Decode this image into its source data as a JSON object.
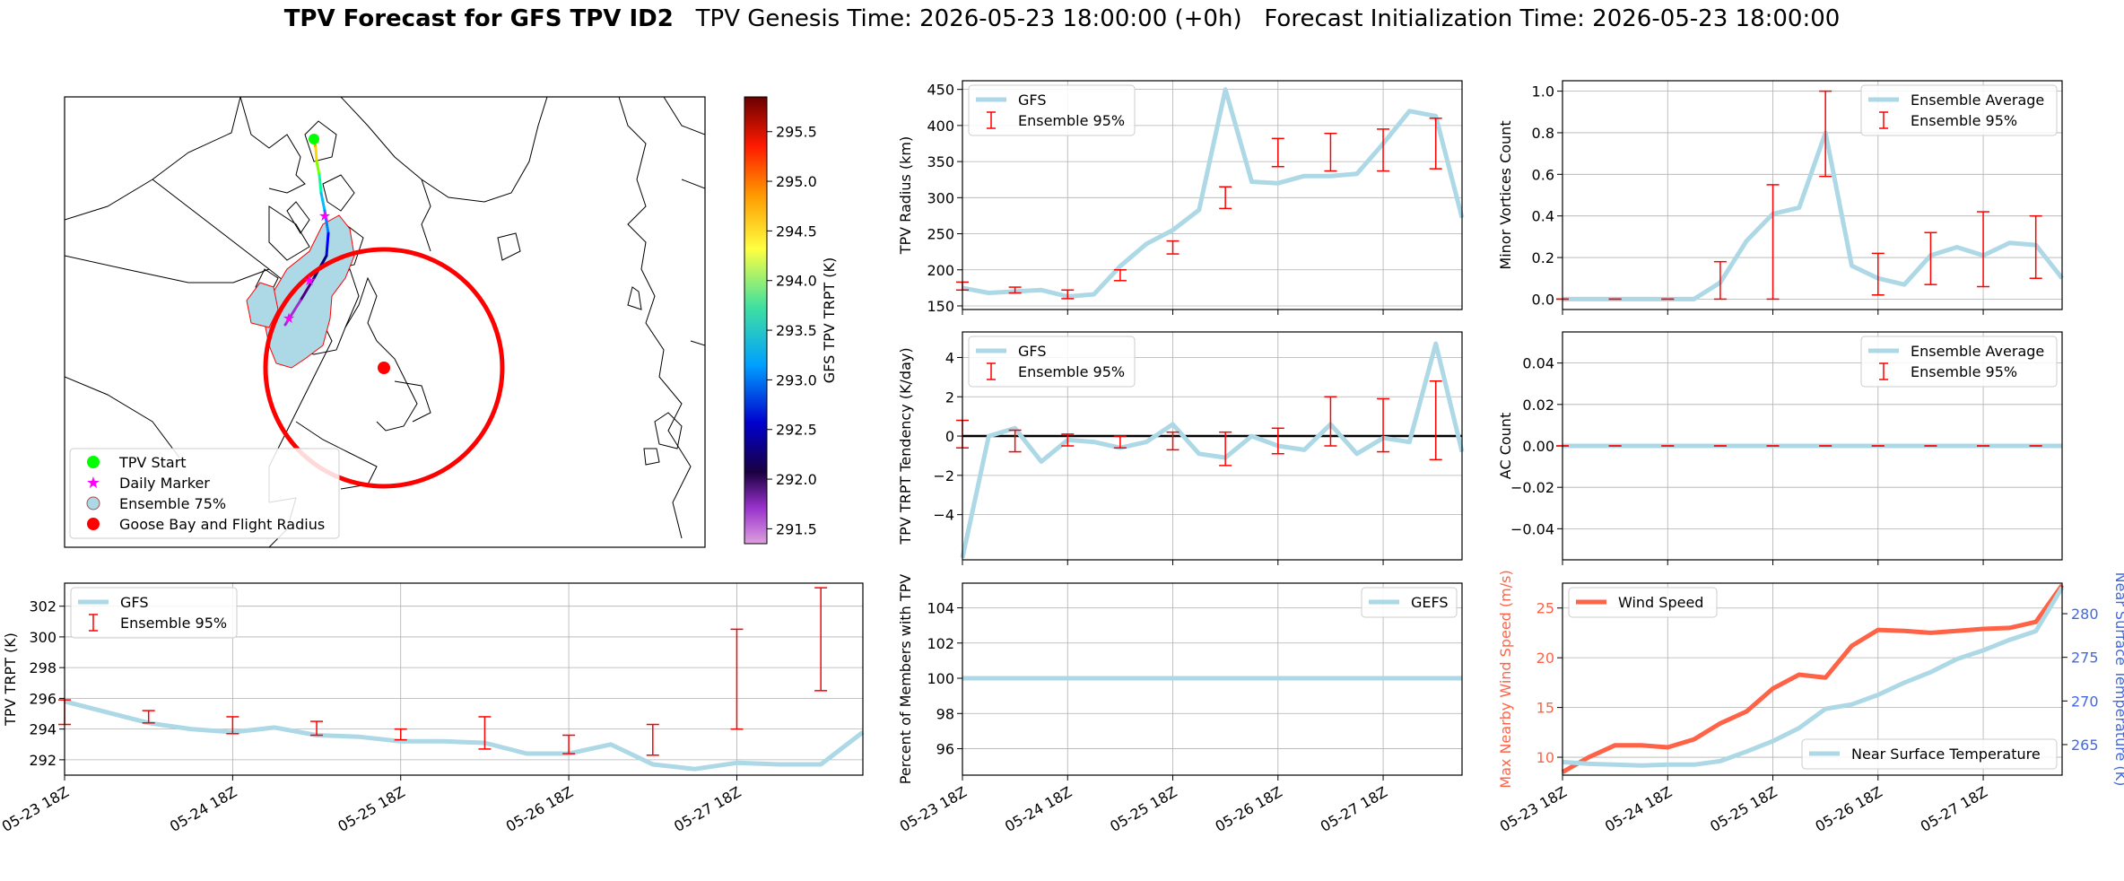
{
  "title": {
    "bold": "TPV Forecast for GFS TPV ID2",
    "genesis": "TPV Genesis Time: 2026-05-23 18:00:00 (+0h)",
    "init": "Forecast Initialization Time: 2026-05-23 18:00:00"
  },
  "colors": {
    "gfs_line": "#add8e6",
    "ensemble_bar": "#ff0000",
    "wind": "#ff6347",
    "temp_axis": "#4169e1",
    "start_marker": "#00ff00",
    "daily_marker": "#ff00ff",
    "goose_bay": "#ff0000"
  },
  "date_ticks": [
    "05-23 18Z",
    "05-24 18Z",
    "05-25 18Z",
    "05-26 18Z",
    "05-27 18Z"
  ],
  "map": {
    "legend": [
      {
        "label": "TPV Start",
        "icon": "green-circle-icon"
      },
      {
        "label": "Daily Marker",
        "icon": "magenta-star-icon"
      },
      {
        "label": "Ensemble 75%",
        "icon": "lightblue-circle-icon"
      },
      {
        "label": "Goose Bay and Flight Radius",
        "icon": "red-circle-icon"
      }
    ],
    "colorbar": {
      "label": "GFS TPV TRPT (K)",
      "ticks": [
        "295.5",
        "295.0",
        "294.5",
        "294.0",
        "293.5",
        "293.0",
        "292.5",
        "292.0",
        "291.5"
      ],
      "range": [
        291.35,
        295.85
      ]
    }
  },
  "chart_data": [
    {
      "id": "trpt",
      "type": "line",
      "title": "",
      "xlabel": "",
      "ylabel": "TPV TRPT (K)",
      "ylim": [
        291,
        303.5
      ],
      "yticks": [
        292,
        294,
        296,
        298,
        300,
        302
      ],
      "x": [
        0,
        0.25,
        0.5,
        0.75,
        1.0,
        1.25,
        1.5,
        1.75,
        2.0,
        2.25,
        2.5,
        2.75,
        3.0,
        3.25,
        3.5,
        3.75,
        4.0,
        4.25,
        4.5,
        4.75
      ],
      "series": [
        {
          "name": "GFS",
          "values": [
            295.8,
            295.1,
            294.4,
            294.0,
            293.8,
            294.1,
            293.6,
            293.5,
            293.2,
            293.2,
            293.1,
            292.4,
            292.4,
            293.0,
            291.7,
            291.4,
            291.8,
            291.7,
            291.7,
            293.8
          ]
        },
        {
          "name": "Ensemble 95%",
          "kind": "errorbar",
          "x": [
            0,
            0.5,
            1.0,
            1.5,
            2.0,
            2.5,
            3.0,
            3.5,
            4.0,
            4.5
          ],
          "low": [
            294.3,
            294.4,
            293.7,
            293.6,
            293.3,
            292.7,
            292.4,
            292.3,
            294.0,
            296.5
          ],
          "high": [
            295.9,
            295.2,
            294.8,
            294.5,
            294.0,
            294.8,
            293.6,
            294.3,
            300.5,
            303.2
          ]
        }
      ],
      "legend": [
        "GFS",
        "Ensemble 95%"
      ],
      "legend_loc": "upper left",
      "grid": true
    },
    {
      "id": "radius",
      "type": "line",
      "ylabel": "TPV Radius (km)",
      "ylim": [
        145,
        462
      ],
      "yticks": [
        150,
        200,
        250,
        300,
        350,
        400,
        450
      ],
      "x": [
        0,
        0.25,
        0.5,
        0.75,
        1.0,
        1.25,
        1.5,
        1.75,
        2.0,
        2.25,
        2.5,
        2.75,
        3.0,
        3.25,
        3.5,
        3.75,
        4.0,
        4.25,
        4.5,
        4.75
      ],
      "series": [
        {
          "name": "GFS",
          "values": [
            175,
            168,
            170,
            172,
            163,
            166,
            205,
            236,
            255,
            283,
            450,
            322,
            320,
            330,
            330,
            333,
            375,
            420,
            413,
            272
          ]
        },
        {
          "name": "Ensemble 95%",
          "kind": "errorbar",
          "x": [
            0,
            0.5,
            1.0,
            1.5,
            2.0,
            2.5,
            3.0,
            3.5,
            4.0,
            4.5
          ],
          "low": [
            172,
            168,
            160,
            185,
            222,
            285,
            343,
            337,
            337,
            340
          ],
          "high": [
            183,
            176,
            172,
            200,
            240,
            315,
            382,
            389,
            395,
            410
          ]
        }
      ],
      "legend": [
        "GFS",
        "Ensemble 95%"
      ],
      "legend_loc": "upper left",
      "grid": true
    },
    {
      "id": "tendency",
      "type": "line",
      "ylabel": "TPV TRPT Tendency (K/day)",
      "ylim": [
        -6.3,
        5.3
      ],
      "yticks": [
        -4,
        -2,
        0,
        2,
        4
      ],
      "ytick_labels": [
        "−4",
        "−2",
        "0",
        "2",
        "4"
      ],
      "x": [
        0,
        0.25,
        0.5,
        0.75,
        1.0,
        1.25,
        1.5,
        1.75,
        2.0,
        2.25,
        2.5,
        2.75,
        3.0,
        3.25,
        3.5,
        3.75,
        4.0,
        4.25,
        4.5,
        4.75
      ],
      "series": [
        {
          "name": "GFS",
          "values": [
            -6.2,
            0.0,
            0.4,
            -1.3,
            -0.2,
            -0.3,
            -0.6,
            -0.3,
            0.6,
            -0.9,
            -1.1,
            0.0,
            -0.5,
            -0.7,
            0.6,
            -0.9,
            -0.1,
            -0.3,
            4.7,
            -0.8
          ]
        },
        {
          "name": "Ensemble 95%",
          "kind": "errorbar",
          "x": [
            0,
            0.5,
            1.0,
            1.5,
            2.0,
            2.5,
            3.0,
            3.5,
            4.0,
            4.5
          ],
          "low": [
            -0.6,
            -0.8,
            -0.5,
            -0.6,
            -0.7,
            -1.5,
            -0.9,
            -0.5,
            -0.8,
            -1.2
          ],
          "high": [
            0.8,
            0.3,
            0.1,
            0.0,
            0.2,
            0.2,
            0.4,
            2.0,
            1.9,
            2.8
          ]
        }
      ],
      "hline": 0,
      "legend": [
        "GFS",
        "Ensemble 95%"
      ],
      "legend_loc": "upper left",
      "grid": true
    },
    {
      "id": "members",
      "type": "line",
      "ylabel": "Percent of Members with TPV",
      "ylim": [
        94.5,
        105.4
      ],
      "yticks": [
        96,
        98,
        100,
        102,
        104
      ],
      "x": [
        0,
        4.75
      ],
      "series": [
        {
          "name": "GEFS",
          "values": [
            100,
            100
          ]
        }
      ],
      "legend": [
        "GEFS"
      ],
      "legend_loc": "upper right",
      "grid": true
    },
    {
      "id": "minor",
      "type": "line",
      "ylabel": "Minor Vortices Count",
      "ylim": [
        -0.05,
        1.05
      ],
      "yticks": [
        0.0,
        0.2,
        0.4,
        0.6,
        0.8,
        1.0
      ],
      "ytick_labels": [
        "0.0",
        "0.2",
        "0.4",
        "0.6",
        "0.8",
        "1.0"
      ],
      "x": [
        0,
        0.25,
        0.5,
        0.75,
        1.0,
        1.25,
        1.5,
        1.75,
        2.0,
        2.25,
        2.5,
        2.75,
        3.0,
        3.25,
        3.5,
        3.75,
        4.0,
        4.25,
        4.5,
        4.75
      ],
      "series": [
        {
          "name": "Ensemble Average",
          "values": [
            0.0,
            0.0,
            0.0,
            0.0,
            0.0,
            0.0,
            0.08,
            0.28,
            0.41,
            0.44,
            0.8,
            0.16,
            0.1,
            0.07,
            0.21,
            0.25,
            0.21,
            0.27,
            0.26,
            0.1
          ]
        },
        {
          "name": "Ensemble 95%",
          "kind": "errorbar",
          "x": [
            0,
            0.5,
            1.0,
            1.5,
            2.0,
            2.5,
            3.0,
            3.5,
            4.0,
            4.5
          ],
          "low": [
            0,
            0,
            0,
            0,
            0.0,
            0.59,
            0.02,
            0.07,
            0.06,
            0.1
          ],
          "high": [
            0,
            0,
            0,
            0.18,
            0.55,
            1.0,
            0.22,
            0.32,
            0.42,
            0.4
          ]
        }
      ],
      "legend": [
        "Ensemble Average",
        "Ensemble 95%"
      ],
      "legend_loc": "upper right",
      "grid": true
    },
    {
      "id": "ac",
      "type": "line",
      "ylabel": "AC Count",
      "ylim": [
        -0.055,
        0.055
      ],
      "yticks": [
        -0.04,
        -0.02,
        0.0,
        0.02,
        0.04
      ],
      "ytick_labels": [
        "−0.04",
        "−0.02",
        "0.00",
        "0.02",
        "0.04"
      ],
      "x": [
        0,
        4.75
      ],
      "series": [
        {
          "name": "Ensemble Average",
          "values": [
            0,
            0
          ]
        },
        {
          "name": "Ensemble 95%",
          "kind": "errorbar",
          "x": [
            0,
            0.5,
            1.0,
            1.5,
            2.0,
            2.5,
            3.0,
            3.5,
            4.0,
            4.5
          ],
          "low": [
            0,
            0,
            0,
            0,
            0,
            0,
            0,
            0,
            0,
            0
          ],
          "high": [
            0,
            0,
            0,
            0,
            0,
            0,
            0,
            0,
            0,
            0
          ]
        }
      ],
      "legend": [
        "Ensemble Average",
        "Ensemble 95%"
      ],
      "legend_loc": "upper right",
      "grid": true
    },
    {
      "id": "wind",
      "type": "line",
      "ylabel": "Max Nearby Wind Speed (m/s)",
      "ylabel2": "Near Surface Temperature (K)",
      "ylim": [
        8.2,
        27.5
      ],
      "yticks": [
        10,
        15,
        20,
        25
      ],
      "ylim2": [
        261.5,
        283.5
      ],
      "yticks2": [
        265,
        270,
        275,
        280
      ],
      "x": [
        0,
        0.25,
        0.5,
        0.75,
        1.0,
        1.25,
        1.5,
        1.75,
        2.0,
        2.25,
        2.5,
        2.75,
        3.0,
        3.25,
        3.5,
        3.75,
        4.0,
        4.25,
        4.5,
        4.75
      ],
      "series": [
        {
          "name": "Wind Speed",
          "axis": "left",
          "values": [
            8.5,
            10.0,
            11.2,
            11.2,
            11.0,
            11.8,
            13.4,
            14.6,
            16.9,
            18.3,
            18.0,
            21.2,
            22.8,
            22.7,
            22.5,
            22.7,
            22.9,
            23.0,
            23.6,
            27.3
          ]
        },
        {
          "name": "Near Surface Temperature",
          "axis": "right",
          "values": [
            263.0,
            262.8,
            262.7,
            262.6,
            262.7,
            262.7,
            263.1,
            264.2,
            265.4,
            266.9,
            269.1,
            269.6,
            270.7,
            272.1,
            273.3,
            274.8,
            275.8,
            277.0,
            278.0,
            283.0
          ]
        }
      ],
      "legend": [
        "Wind Speed",
        "Near Surface Temperature"
      ],
      "grid": true
    }
  ]
}
